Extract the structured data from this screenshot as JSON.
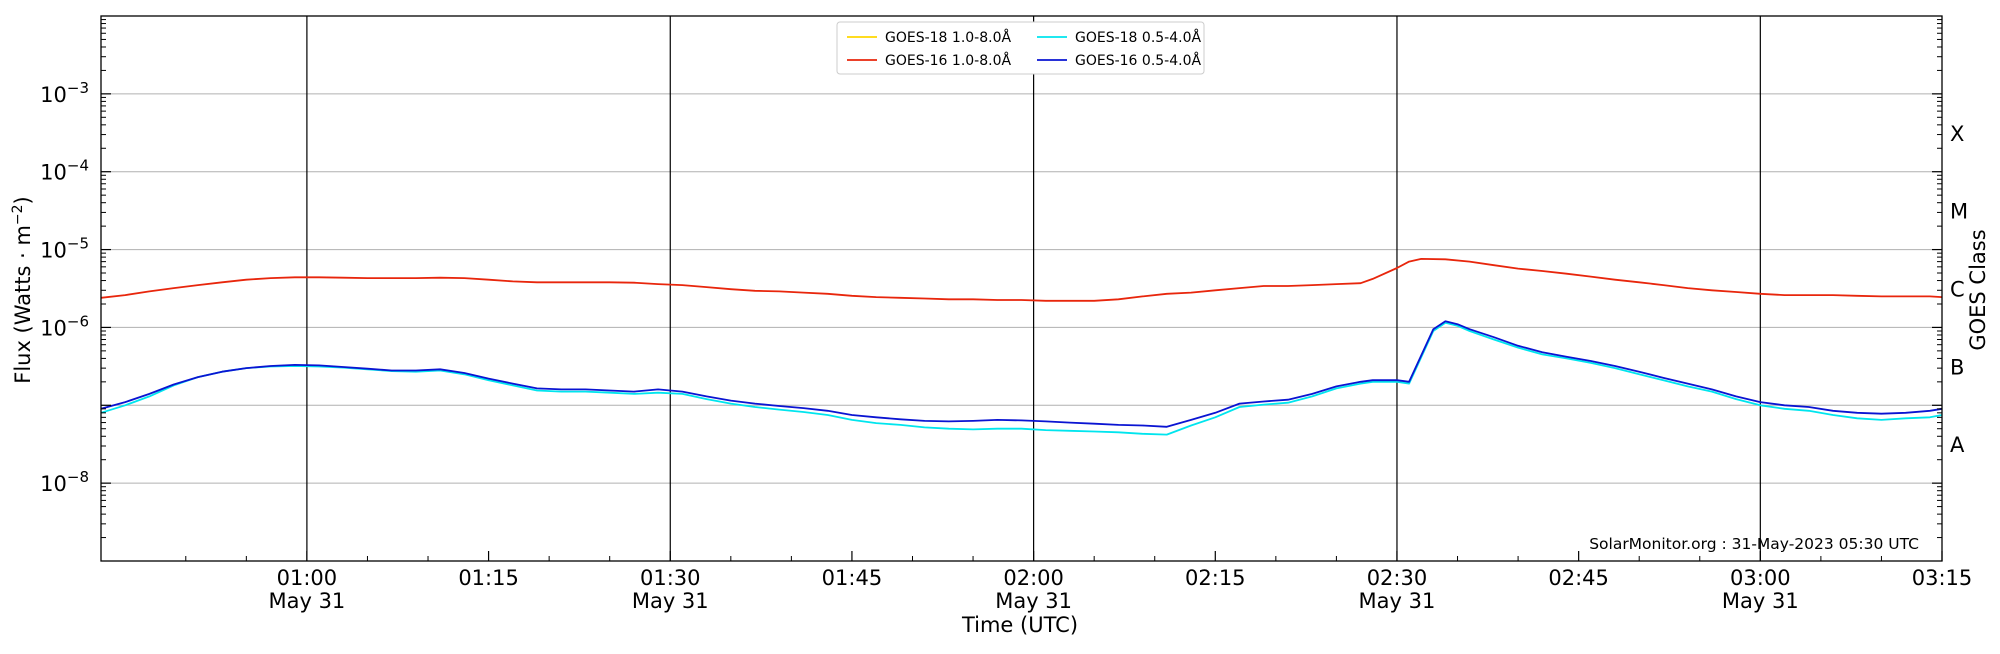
{
  "chart_data": {
    "type": "line",
    "title": "",
    "xlabel": "Time (UTC)",
    "ylabel_base": "Flux (Watts · m",
    "ylabel_exp": "−2",
    "ylabel_close": ")",
    "y2label": "GOES Class",
    "yscale": "log",
    "ylim": [
      1e-09,
      0.01
    ],
    "xlim_minutes": [
      43,
      195
    ],
    "grid": "horizontal",
    "legend_position": "top-center",
    "x_ticks": [
      {
        "t": 60,
        "time": "01:00",
        "date": "May 31"
      },
      {
        "t": 75,
        "time": "01:15",
        "date": ""
      },
      {
        "t": 90,
        "time": "01:30",
        "date": "May 31"
      },
      {
        "t": 105,
        "time": "01:45",
        "date": ""
      },
      {
        "t": 120,
        "time": "02:00",
        "date": "May 31"
      },
      {
        "t": 135,
        "time": "02:15",
        "date": ""
      },
      {
        "t": 150,
        "time": "02:30",
        "date": "May 31"
      },
      {
        "t": 165,
        "time": "02:45",
        "date": ""
      },
      {
        "t": 180,
        "time": "03:00",
        "date": "May 31"
      },
      {
        "t": 195,
        "time": "03:15",
        "date": ""
      }
    ],
    "y_ticks": [
      {
        "exp": -8,
        "base": "10",
        "sup": "−8"
      },
      {
        "exp": -7,
        "base": "",
        "sup": ""
      },
      {
        "exp": -6,
        "base": "10",
        "sup": "−6"
      },
      {
        "exp": -5,
        "base": "10",
        "sup": "−5"
      },
      {
        "exp": -4,
        "base": "10",
        "sup": "−4"
      },
      {
        "exp": -3,
        "base": "10",
        "sup": "−3"
      }
    ],
    "goes_classes": [
      {
        "label": "X",
        "flux_exp": -3.5
      },
      {
        "label": "M",
        "flux_exp": -4.5
      },
      {
        "label": "C",
        "flux_exp": -5.5
      },
      {
        "label": "B",
        "flux_exp": -6.5
      },
      {
        "label": "A",
        "flux_exp": -7.5
      }
    ],
    "series": [
      {
        "name": "GOES-18 1.0-8.0Å",
        "color": "#ffd700",
        "points": []
      },
      {
        "name": "GOES-18 0.5-4.0Å",
        "color": "#00e5ee",
        "points": [
          [
            43,
            8e-08
          ],
          [
            45,
            1e-07
          ],
          [
            47,
            1.3e-07
          ],
          [
            49,
            1.8e-07
          ],
          [
            51,
            2.3e-07
          ],
          [
            53,
            2.7e-07
          ],
          [
            55,
            3e-07
          ],
          [
            57,
            3.15e-07
          ],
          [
            59,
            3.2e-07
          ],
          [
            61,
            3.15e-07
          ],
          [
            63,
            3.05e-07
          ],
          [
            65,
            2.9e-07
          ],
          [
            67,
            2.75e-07
          ],
          [
            69,
            2.7e-07
          ],
          [
            71,
            2.8e-07
          ],
          [
            73,
            2.5e-07
          ],
          [
            75,
            2.1e-07
          ],
          [
            77,
            1.8e-07
          ],
          [
            79,
            1.55e-07
          ],
          [
            81,
            1.5e-07
          ],
          [
            83,
            1.5e-07
          ],
          [
            85,
            1.45e-07
          ],
          [
            87,
            1.4e-07
          ],
          [
            89,
            1.45e-07
          ],
          [
            91,
            1.4e-07
          ],
          [
            93,
            1.2e-07
          ],
          [
            95,
            1.05e-07
          ],
          [
            97,
            9.5e-08
          ],
          [
            99,
            8.8e-08
          ],
          [
            101,
            8.2e-08
          ],
          [
            103,
            7.5e-08
          ],
          [
            105,
            6.5e-08
          ],
          [
            107,
            5.9e-08
          ],
          [
            109,
            5.6e-08
          ],
          [
            111,
            5.2e-08
          ],
          [
            113,
            5e-08
          ],
          [
            115,
            4.9e-08
          ],
          [
            117,
            5e-08
          ],
          [
            119,
            5e-08
          ],
          [
            121,
            4.8e-08
          ],
          [
            123,
            4.7e-08
          ],
          [
            125,
            4.6e-08
          ],
          [
            127,
            4.5e-08
          ],
          [
            129,
            4.3e-08
          ],
          [
            131,
            4.2e-08
          ],
          [
            133,
            5.5e-08
          ],
          [
            135,
            7e-08
          ],
          [
            137,
            9.5e-08
          ],
          [
            139,
            1.02e-07
          ],
          [
            141,
            1.08e-07
          ],
          [
            143,
            1.3e-07
          ],
          [
            145,
            1.65e-07
          ],
          [
            147,
            1.9e-07
          ],
          [
            148,
            2e-07
          ],
          [
            150,
            2e-07
          ],
          [
            151,
            1.9e-07
          ],
          [
            153,
            9e-07
          ],
          [
            154,
            1.15e-06
          ],
          [
            155,
            1.05e-06
          ],
          [
            156,
            9e-07
          ],
          [
            158,
            7e-07
          ],
          [
            160,
            5.5e-07
          ],
          [
            162,
            4.5e-07
          ],
          [
            164,
            4e-07
          ],
          [
            166,
            3.5e-07
          ],
          [
            168,
            3e-07
          ],
          [
            170,
            2.5e-07
          ],
          [
            172,
            2.1e-07
          ],
          [
            174,
            1.75e-07
          ],
          [
            176,
            1.5e-07
          ],
          [
            178,
            1.2e-07
          ],
          [
            180,
            1e-07
          ],
          [
            182,
            9e-08
          ],
          [
            184,
            8.5e-08
          ],
          [
            186,
            7.5e-08
          ],
          [
            188,
            6.8e-08
          ],
          [
            190,
            6.5e-08
          ],
          [
            192,
            6.8e-08
          ],
          [
            194,
            7e-08
          ],
          [
            195,
            7.5e-08
          ]
        ]
      },
      {
        "name": "GOES-16 1.0-8.0Å",
        "color": "#e8260c",
        "points": [
          [
            43,
            2.4e-06
          ],
          [
            45,
            2.6e-06
          ],
          [
            47,
            2.9e-06
          ],
          [
            49,
            3.2e-06
          ],
          [
            51,
            3.5e-06
          ],
          [
            53,
            3.8e-06
          ],
          [
            55,
            4.1e-06
          ],
          [
            57,
            4.3e-06
          ],
          [
            59,
            4.4e-06
          ],
          [
            61,
            4.4e-06
          ],
          [
            63,
            4.35e-06
          ],
          [
            65,
            4.3e-06
          ],
          [
            67,
            4.3e-06
          ],
          [
            69,
            4.3e-06
          ],
          [
            71,
            4.35e-06
          ],
          [
            73,
            4.3e-06
          ],
          [
            75,
            4.1e-06
          ],
          [
            77,
            3.9e-06
          ],
          [
            79,
            3.8e-06
          ],
          [
            81,
            3.8e-06
          ],
          [
            83,
            3.8e-06
          ],
          [
            85,
            3.8e-06
          ],
          [
            87,
            3.75e-06
          ],
          [
            89,
            3.6e-06
          ],
          [
            91,
            3.5e-06
          ],
          [
            93,
            3.3e-06
          ],
          [
            95,
            3.1e-06
          ],
          [
            97,
            2.95e-06
          ],
          [
            99,
            2.9e-06
          ],
          [
            101,
            2.8e-06
          ],
          [
            103,
            2.7e-06
          ],
          [
            105,
            2.55e-06
          ],
          [
            107,
            2.45e-06
          ],
          [
            109,
            2.4e-06
          ],
          [
            111,
            2.35e-06
          ],
          [
            113,
            2.3e-06
          ],
          [
            115,
            2.3e-06
          ],
          [
            117,
            2.25e-06
          ],
          [
            119,
            2.25e-06
          ],
          [
            121,
            2.2e-06
          ],
          [
            123,
            2.2e-06
          ],
          [
            125,
            2.2e-06
          ],
          [
            127,
            2.3e-06
          ],
          [
            129,
            2.5e-06
          ],
          [
            131,
            2.7e-06
          ],
          [
            133,
            2.8e-06
          ],
          [
            135,
            3e-06
          ],
          [
            137,
            3.2e-06
          ],
          [
            139,
            3.4e-06
          ],
          [
            141,
            3.4e-06
          ],
          [
            143,
            3.5e-06
          ],
          [
            145,
            3.6e-06
          ],
          [
            147,
            3.7e-06
          ],
          [
            148,
            4.2e-06
          ],
          [
            150,
            5.8e-06
          ],
          [
            151,
            7e-06
          ],
          [
            152,
            7.6e-06
          ],
          [
            154,
            7.5e-06
          ],
          [
            156,
            7e-06
          ],
          [
            158,
            6.3e-06
          ],
          [
            160,
            5.7e-06
          ],
          [
            162,
            5.3e-06
          ],
          [
            164,
            4.9e-06
          ],
          [
            166,
            4.5e-06
          ],
          [
            168,
            4.1e-06
          ],
          [
            170,
            3.8e-06
          ],
          [
            172,
            3.5e-06
          ],
          [
            174,
            3.2e-06
          ],
          [
            176,
            3e-06
          ],
          [
            178,
            2.85e-06
          ],
          [
            180,
            2.7e-06
          ],
          [
            182,
            2.6e-06
          ],
          [
            184,
            2.6e-06
          ],
          [
            186,
            2.6e-06
          ],
          [
            188,
            2.55e-06
          ],
          [
            190,
            2.5e-06
          ],
          [
            192,
            2.5e-06
          ],
          [
            194,
            2.5e-06
          ],
          [
            195,
            2.45e-06
          ]
        ]
      },
      {
        "name": "GOES-16 0.5-4.0Å",
        "color": "#0a14d2",
        "points": [
          [
            43,
            9e-08
          ],
          [
            45,
            1.1e-07
          ],
          [
            47,
            1.4e-07
          ],
          [
            49,
            1.85e-07
          ],
          [
            51,
            2.3e-07
          ],
          [
            53,
            2.7e-07
          ],
          [
            55,
            3e-07
          ],
          [
            57,
            3.2e-07
          ],
          [
            59,
            3.3e-07
          ],
          [
            61,
            3.25e-07
          ],
          [
            63,
            3.1e-07
          ],
          [
            65,
            2.95e-07
          ],
          [
            67,
            2.8e-07
          ],
          [
            69,
            2.8e-07
          ],
          [
            71,
            2.9e-07
          ],
          [
            73,
            2.6e-07
          ],
          [
            75,
            2.2e-07
          ],
          [
            77,
            1.9e-07
          ],
          [
            79,
            1.65e-07
          ],
          [
            81,
            1.6e-07
          ],
          [
            83,
            1.6e-07
          ],
          [
            85,
            1.55e-07
          ],
          [
            87,
            1.5e-07
          ],
          [
            89,
            1.6e-07
          ],
          [
            91,
            1.5e-07
          ],
          [
            93,
            1.3e-07
          ],
          [
            95,
            1.15e-07
          ],
          [
            97,
            1.05e-07
          ],
          [
            99,
            9.8e-08
          ],
          [
            101,
            9.2e-08
          ],
          [
            103,
            8.5e-08
          ],
          [
            105,
            7.5e-08
          ],
          [
            107,
            7e-08
          ],
          [
            109,
            6.6e-08
          ],
          [
            111,
            6.3e-08
          ],
          [
            113,
            6.2e-08
          ],
          [
            115,
            6.3e-08
          ],
          [
            117,
            6.5e-08
          ],
          [
            119,
            6.4e-08
          ],
          [
            121,
            6.2e-08
          ],
          [
            123,
            6e-08
          ],
          [
            125,
            5.8e-08
          ],
          [
            127,
            5.6e-08
          ],
          [
            129,
            5.5e-08
          ],
          [
            131,
            5.3e-08
          ],
          [
            133,
            6.5e-08
          ],
          [
            135,
            8e-08
          ],
          [
            137,
            1.05e-07
          ],
          [
            139,
            1.12e-07
          ],
          [
            141,
            1.18e-07
          ],
          [
            143,
            1.4e-07
          ],
          [
            145,
            1.75e-07
          ],
          [
            147,
            2e-07
          ],
          [
            148,
            2.1e-07
          ],
          [
            150,
            2.1e-07
          ],
          [
            151,
            2e-07
          ],
          [
            153,
            9.5e-07
          ],
          [
            154,
            1.2e-06
          ],
          [
            155,
            1.1e-06
          ],
          [
            156,
            9.5e-07
          ],
          [
            158,
            7.5e-07
          ],
          [
            160,
            5.8e-07
          ],
          [
            162,
            4.8e-07
          ],
          [
            164,
            4.2e-07
          ],
          [
            166,
            3.7e-07
          ],
          [
            168,
            3.2e-07
          ],
          [
            170,
            2.7e-07
          ],
          [
            172,
            2.25e-07
          ],
          [
            174,
            1.9e-07
          ],
          [
            176,
            1.6e-07
          ],
          [
            178,
            1.3e-07
          ],
          [
            180,
            1.1e-07
          ],
          [
            182,
            1e-07
          ],
          [
            184,
            9.5e-08
          ],
          [
            186,
            8.5e-08
          ],
          [
            188,
            8e-08
          ],
          [
            190,
            7.8e-08
          ],
          [
            192,
            8e-08
          ],
          [
            194,
            8.5e-08
          ],
          [
            195,
            9e-08
          ]
        ]
      }
    ],
    "annotation": "SolarMonitor.org : 31-May-2023 05:30 UTC"
  }
}
